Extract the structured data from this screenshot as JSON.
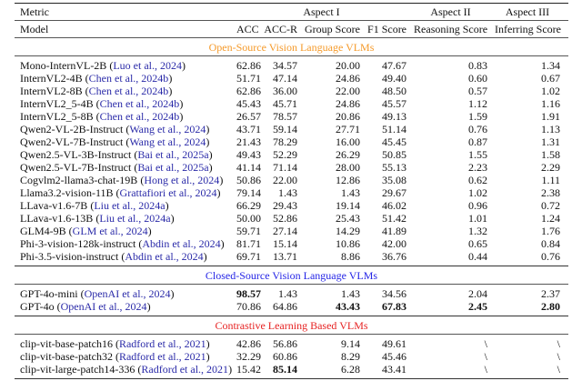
{
  "header": {
    "metric_label": "Metric",
    "model_label": "Model",
    "aspects": [
      "Aspect I",
      "Aspect II",
      "Aspect III"
    ],
    "columns": [
      "ACC",
      "ACC-R",
      "Group Score",
      "F1 Score",
      "Reasoning Score",
      "Inferring Score"
    ]
  },
  "sections": [
    {
      "title": "Open-Source Vision Language VLMs",
      "color": "#f59a2a",
      "rows": [
        {
          "model": "Mono-InternVL-2B",
          "cite": "Luo et al., 2024",
          "values": [
            "62.86",
            "34.57",
            "20.00",
            "47.67",
            "0.83",
            "1.34"
          ],
          "bold": []
        },
        {
          "model": "InternVL2-4B",
          "cite": "Chen et al., 2024b",
          "values": [
            "51.71",
            "47.14",
            "24.86",
            "49.40",
            "0.60",
            "0.67"
          ],
          "bold": []
        },
        {
          "model": "InternVL2-8B",
          "cite": "Chen et al., 2024b",
          "values": [
            "62.86",
            "36.00",
            "22.00",
            "48.50",
            "0.57",
            "1.02"
          ],
          "bold": []
        },
        {
          "model": "InternVL2_5-4B",
          "cite": "Chen et al., 2024b",
          "values": [
            "45.43",
            "45.71",
            "24.86",
            "45.57",
            "1.12",
            "1.16"
          ],
          "bold": []
        },
        {
          "model": "InternVL2_5-8B",
          "cite": "Chen et al., 2024b",
          "values": [
            "26.57",
            "78.57",
            "20.86",
            "49.13",
            "1.59",
            "1.91"
          ],
          "bold": []
        },
        {
          "model": "Qwen2-VL-2B-Instruct",
          "cite": "Wang et al., 2024",
          "values": [
            "43.71",
            "59.14",
            "27.71",
            "51.14",
            "0.76",
            "1.13"
          ],
          "bold": []
        },
        {
          "model": "Qwen2-VL-7B-Instruct",
          "cite": "Wang et al., 2024",
          "values": [
            "21.43",
            "78.29",
            "16.00",
            "45.45",
            "0.87",
            "1.31"
          ],
          "bold": []
        },
        {
          "model": "Qwen2.5-VL-3B-Instruct",
          "cite": "Bai et al., 2025a",
          "values": [
            "49.43",
            "52.29",
            "26.29",
            "50.85",
            "1.55",
            "1.58"
          ],
          "bold": []
        },
        {
          "model": "Qwen2.5-VL-7B-Instruct",
          "cite": "Bai et al., 2025a",
          "values": [
            "41.14",
            "71.14",
            "28.00",
            "55.13",
            "2.23",
            "2.29"
          ],
          "bold": []
        },
        {
          "model": "Cogvlm2-llama3-chat-19B",
          "cite": "Hong et al., 2024",
          "values": [
            "50.86",
            "22.00",
            "12.86",
            "35.08",
            "0.62",
            "1.11"
          ],
          "bold": []
        },
        {
          "model": "Llama3.2-vision-11B",
          "cite": "Grattafiori et al., 2024",
          "values": [
            "79.14",
            "1.43",
            "1.43",
            "29.67",
            "1.02",
            "2.38"
          ],
          "bold": []
        },
        {
          "model": "LLava-v1.6-7B",
          "cite": "Liu et al., 2024a",
          "values": [
            "66.29",
            "29.43",
            "19.14",
            "46.02",
            "0.96",
            "0.72"
          ],
          "bold": []
        },
        {
          "model": "LLava-v1.6-13B",
          "cite": "Liu et al., 2024a",
          "values": [
            "50.00",
            "52.86",
            "25.43",
            "51.42",
            "1.01",
            "1.24"
          ],
          "bold": []
        },
        {
          "model": "GLM4-9B",
          "cite": "GLM et al., 2024",
          "values": [
            "59.71",
            "27.14",
            "14.29",
            "41.89",
            "1.32",
            "1.76"
          ],
          "bold": []
        },
        {
          "model": "Phi-3-vision-128k-instruct",
          "cite": "Abdin et al., 2024",
          "values": [
            "81.71",
            "15.14",
            "10.86",
            "42.00",
            "0.65",
            "0.84"
          ],
          "bold": []
        },
        {
          "model": "Phi-3.5-vision-instruct",
          "cite": "Abdin et al., 2024",
          "values": [
            "69.71",
            "13.71",
            "8.86",
            "36.76",
            "0.44",
            "0.76"
          ],
          "bold": []
        }
      ]
    },
    {
      "title": "Closed-Source Vision Language VLMs",
      "color": "#2424e6",
      "rows": [
        {
          "model": "GPT-4o-mini",
          "cite": "OpenAI et al., 2024",
          "values": [
            "98.57",
            "1.43",
            "1.43",
            "34.56",
            "2.04",
            "2.37"
          ],
          "bold": [
            0
          ]
        },
        {
          "model": "GPT-4o",
          "cite": "OpenAI et al., 2024",
          "values": [
            "70.86",
            "64.86",
            "43.43",
            "67.83",
            "2.45",
            "2.80"
          ],
          "bold": [
            2,
            3,
            4,
            5
          ]
        }
      ]
    },
    {
      "title": "Contrastive Learning Based VLMs",
      "color": "#e62222",
      "rows": [
        {
          "model": "clip-vit-base-patch16",
          "cite": "Radford et al., 2021",
          "values": [
            "42.86",
            "56.86",
            "9.14",
            "49.61",
            "\\",
            "\\"
          ],
          "bold": []
        },
        {
          "model": "clip-vit-base-patch32",
          "cite": "Radford et al., 2021",
          "values": [
            "32.29",
            "60.86",
            "8.29",
            "45.46",
            "\\",
            "\\"
          ],
          "bold": []
        },
        {
          "model": "clip-vit-large-patch14-336",
          "cite": "Radford et al., 2021",
          "values": [
            "15.42",
            "85.14",
            "6.28",
            "43.41",
            "\\",
            "\\"
          ],
          "bold": [
            1
          ]
        }
      ]
    }
  ]
}
